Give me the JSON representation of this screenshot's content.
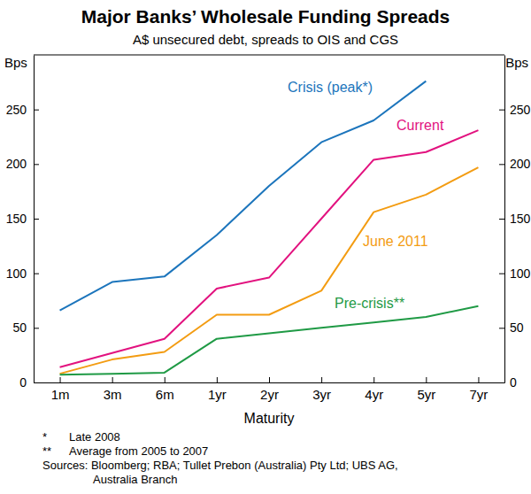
{
  "chart_data": {
    "type": "line",
    "title": "Major Banks’ Wholesale Funding Spreads",
    "subtitle": "A$ unsecured debt, spreads to OIS and CGS",
    "y_label": "Bps",
    "y2_label": "Bps",
    "x_label": "Maturity",
    "categories": [
      "1m",
      "3m",
      "6m",
      "1yr",
      "2yr",
      "3yr",
      "4yr",
      "5yr",
      "7yr"
    ],
    "series": [
      {
        "name": "Crisis (peak*)",
        "color": "#1c75bc",
        "values": [
          66,
          92,
          97,
          135,
          180,
          220,
          240,
          276,
          null
        ]
      },
      {
        "name": "Current",
        "color": "#e2127f",
        "values": [
          14,
          27,
          40,
          86,
          96,
          150,
          204,
          211,
          231
        ]
      },
      {
        "name": "June 2011",
        "color": "#f39c12",
        "values": [
          8,
          21,
          28,
          62,
          62,
          84,
          156,
          172,
          197
        ]
      },
      {
        "name": "Pre-crisis**",
        "color": "#1f9a45",
        "values": [
          7,
          8,
          9,
          40,
          45,
          50,
          55,
          60,
          70
        ]
      }
    ],
    "ylim": [
      0,
      300
    ],
    "yticks": [
      0,
      50,
      100,
      150,
      200,
      250
    ],
    "y2lim": [
      0,
      300
    ],
    "y2ticks": [
      0,
      50,
      100,
      150,
      200,
      250
    ],
    "grid": false,
    "notes": [
      {
        "marker": "*",
        "text": "Late 2008"
      },
      {
        "marker": "**",
        "text": "Average from 2005 to 2007"
      }
    ],
    "source": [
      "Sources: Bloomberg; RBA; Tullet Prebon (Australia) Pty Ltd; UBS AG,",
      "Australia Branch"
    ]
  }
}
